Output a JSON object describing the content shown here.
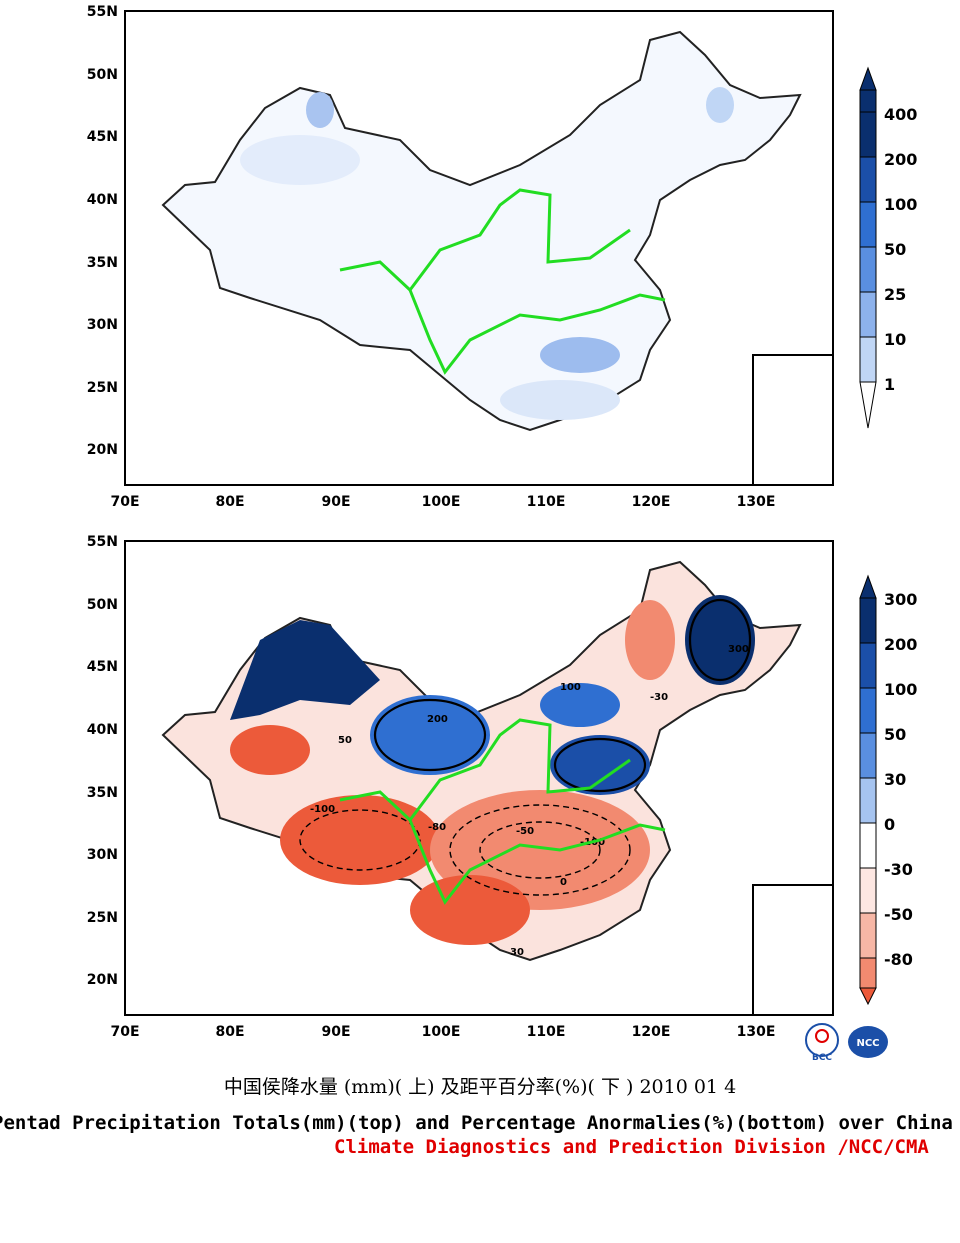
{
  "top_map": {
    "lat_labels": [
      "55N",
      "50N",
      "45N",
      "40N",
      "35N",
      "30N",
      "25N",
      "20N"
    ],
    "lon_labels": [
      "70E",
      "80E",
      "90E",
      "100E",
      "110E",
      "120E",
      "130E"
    ],
    "colorbar_labels": [
      "400",
      "200",
      "100",
      "50",
      "25",
      "10",
      "1"
    ],
    "colorbar_colors": [
      "#0a2f6e",
      "#1b4fa8",
      "#2f6fd1",
      "#5a8fe0",
      "#8db2ec",
      "#c0d6f5",
      "#ffffff"
    ]
  },
  "bottom_map": {
    "lat_labels": [
      "55N",
      "50N",
      "45N",
      "40N",
      "35N",
      "30N",
      "25N",
      "20N"
    ],
    "lon_labels": [
      "70E",
      "80E",
      "90E",
      "100E",
      "110E",
      "120E",
      "130E"
    ],
    "colorbar_labels": [
      "300",
      "200",
      "100",
      "50",
      "30",
      "0",
      "-30",
      "-50",
      "-80"
    ],
    "colorbar_colors": [
      "#0a2f6e",
      "#1b4fa8",
      "#2f6fd1",
      "#5a8fe0",
      "#a6c4f0",
      "#ffffff",
      "#fde7e2",
      "#f7b7a6",
      "#f28a70",
      "#ec5a3a"
    ],
    "contour_labels": [
      "200",
      "300",
      "100",
      "-100",
      "-80",
      "-50",
      "-30",
      "30",
      "0",
      "50"
    ]
  },
  "footer": {
    "chinese_title": "中国侯降水量 (mm)( 上) 及距平百分率(%)( 下 ) 2010 01 4",
    "english_title": "Pentad Precipitation Totals(mm)(top) and Percentage Anormalies(%)(bottom) over China",
    "division": "Climate Diagnostics and Prediction Division /NCC/CMA",
    "logo_left": "BCC",
    "logo_right": "NCC"
  }
}
